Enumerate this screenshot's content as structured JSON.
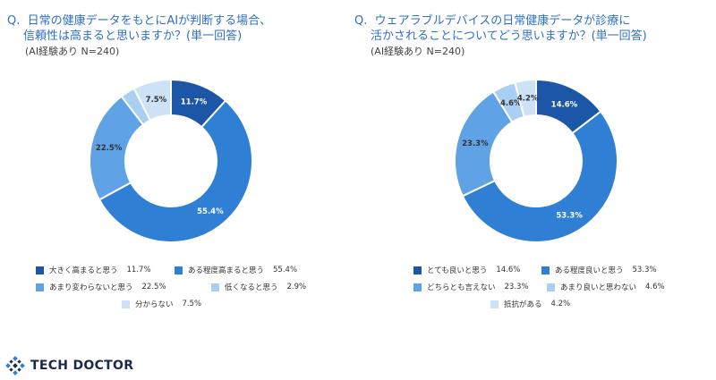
{
  "charts": [
    {
      "title_lines": [
        "Q.  日常の健康データをもとにAIが判断する場合、",
        "信頼性は高まると思いますか？(単一回答)"
      ],
      "subtitle": "(AI経験あり N=240)"
    },
    {
      "title_lines": [
        "Q.  ウェアラブルデバイスの日常健康データが診療に",
        "活かされることについてどう思いますか？(単一回答)"
      ],
      "subtitle": "(AI経験あり N=240)"
    }
  ],
  "chart_data": [
    {
      "type": "pie",
      "donut": true,
      "title": "日常の健康データをもとにAIが判断する場合、信頼性は高まると思いますか？(単一回答)",
      "subtitle": "(AI経験あり N=240)",
      "categories": [
        "大きく高まると思う",
        "ある程度高まると思う",
        "あまり変わらないと思う",
        "低くなると思う",
        "分からない"
      ],
      "values": [
        11.7,
        55.4,
        22.5,
        2.9,
        7.5
      ],
      "labels": [
        "11.7%",
        "55.4%",
        "22.5%",
        "",
        "7.5%"
      ],
      "legend_pct": [
        "11.7%",
        "55.4%",
        "22.5%",
        "2.9%",
        "7.5%"
      ],
      "colors": [
        "#1c56a6",
        "#2f7fd4",
        "#5fa3e6",
        "#a9cff2",
        "#cde2f4"
      ],
      "label_colors": [
        "#ffffff",
        "#ffffff",
        "#333333",
        "#333333",
        "#333333"
      ]
    },
    {
      "type": "pie",
      "donut": true,
      "title": "ウェアラブルデバイスの日常健康データが診療に活かされることについてどう思いますか？(単一回答)",
      "subtitle": "(AI経験あり N=240)",
      "categories": [
        "とても良いと思う",
        "ある程度良いと思う",
        "どちらとも言えない",
        "あまり良いと思わない",
        "抵抗がある"
      ],
      "values": [
        14.6,
        53.3,
        23.3,
        4.6,
        4.2
      ],
      "labels": [
        "14.6%",
        "53.3%",
        "23.3%",
        "4.6%",
        "4.2%"
      ],
      "legend_pct": [
        "14.6%",
        "53.3%",
        "23.3%",
        "4.6%",
        "4.2%"
      ],
      "colors": [
        "#1c56a6",
        "#2f7fd4",
        "#5fa3e6",
        "#a9cff2",
        "#cde2f4"
      ],
      "label_colors": [
        "#ffffff",
        "#ffffff",
        "#333333",
        "#333333",
        "#333333"
      ]
    }
  ],
  "footer": {
    "logo_text": "TECH DOCTOR",
    "logo_icon": "tech-doctor-logo-icon"
  }
}
